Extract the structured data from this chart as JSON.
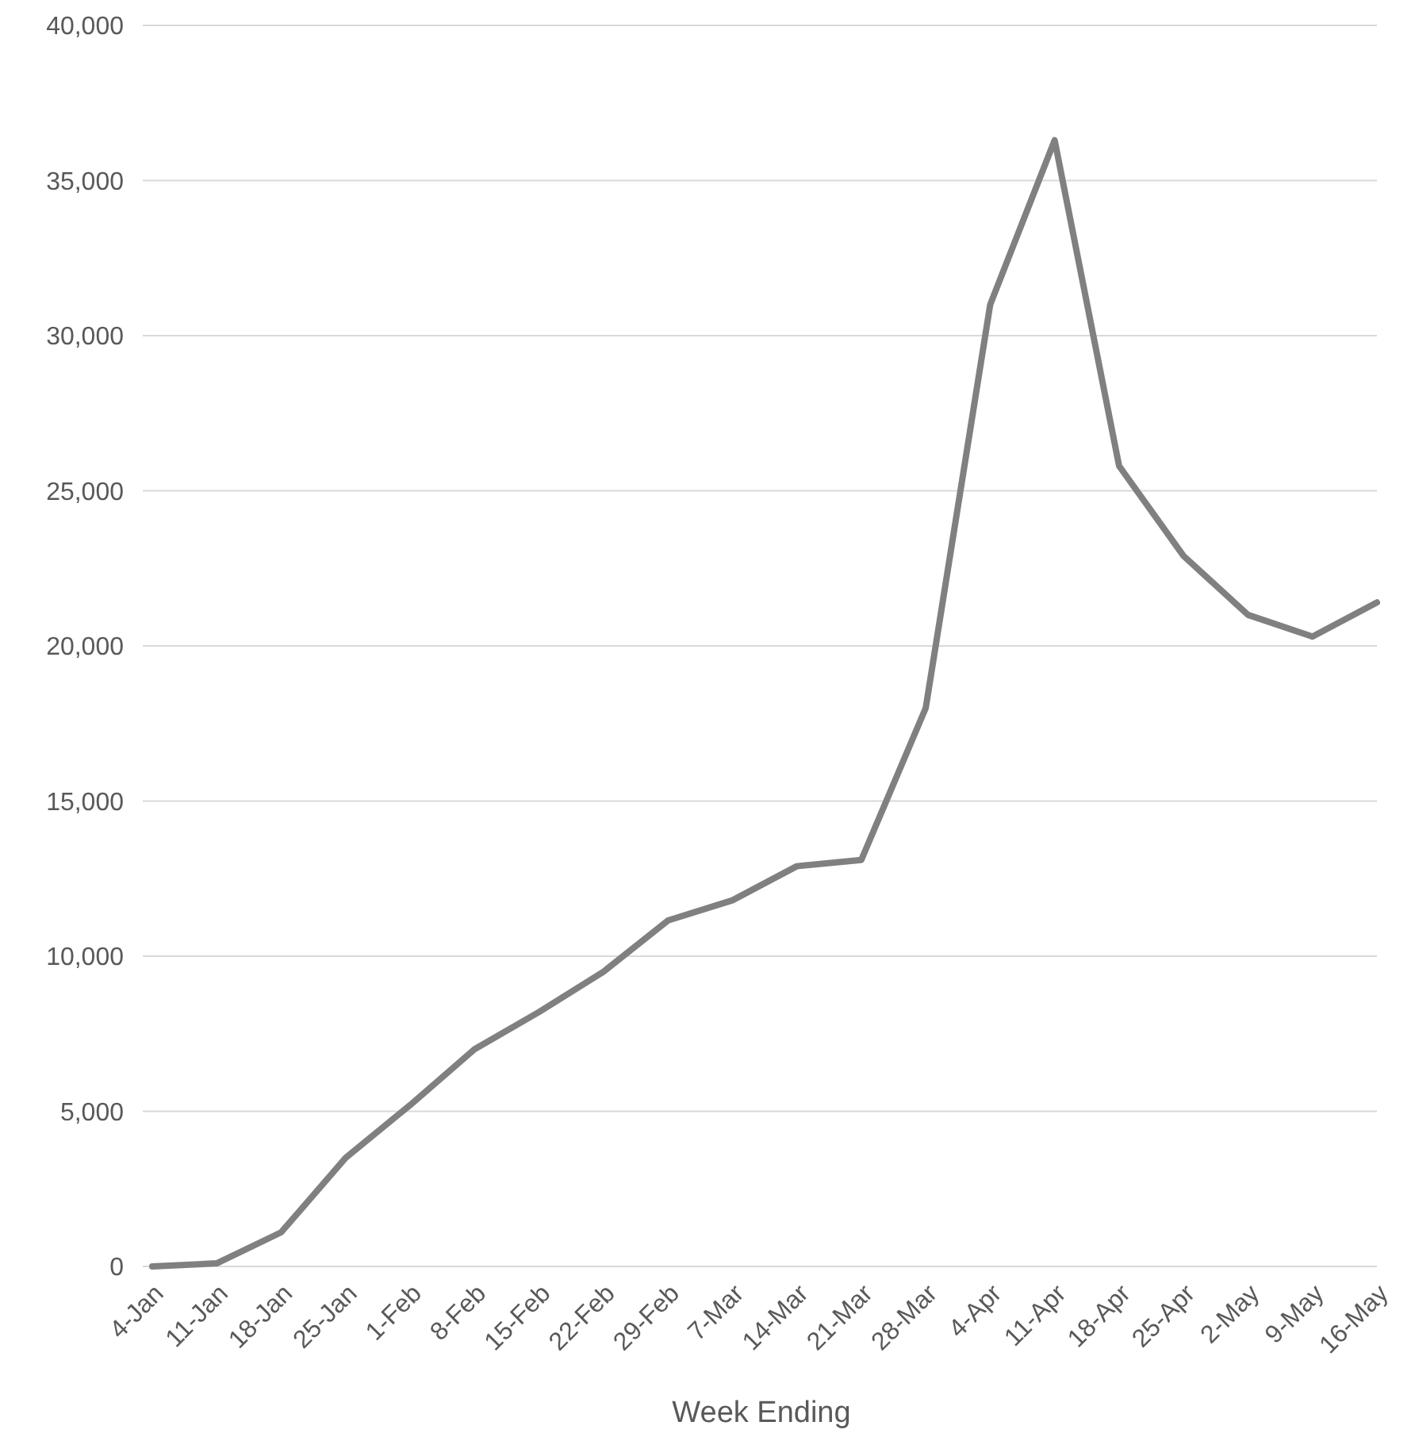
{
  "chart_data": {
    "type": "line",
    "xlabel": "Week Ending",
    "categories": [
      "4-Jan",
      "11-Jan",
      "18-Jan",
      "25-Jan",
      "1-Feb",
      "8-Feb",
      "15-Feb",
      "22-Feb",
      "29-Feb",
      "7-Mar",
      "14-Mar",
      "21-Mar",
      "28-Mar",
      "4-Apr",
      "11-Apr",
      "18-Apr",
      "25-Apr",
      "2-May",
      "9-May",
      "16-May"
    ],
    "series": [
      {
        "color": "#808080",
        "values": [
          0,
          100,
          1100,
          3500,
          5200,
          7000,
          8200,
          9500,
          11150,
          11800,
          12900,
          13100,
          18000,
          31000,
          36300,
          25800,
          22900,
          21000,
          20300,
          21400
        ]
      }
    ],
    "ylim": [
      0,
      40000
    ],
    "yticks": [
      {
        "value": 0,
        "label": "0"
      },
      {
        "value": 5000,
        "label": "5,000"
      },
      {
        "value": 10000,
        "label": "10,000"
      },
      {
        "value": 15000,
        "label": "15,000"
      },
      {
        "value": 20000,
        "label": "20,000"
      },
      {
        "value": 25000,
        "label": "25,000"
      },
      {
        "value": 30000,
        "label": "30,000"
      },
      {
        "value": 35000,
        "label": "35,000"
      },
      {
        "value": 40000,
        "label": "40,000"
      }
    ],
    "grid": "y",
    "marker": "none",
    "line_style": "solid"
  }
}
